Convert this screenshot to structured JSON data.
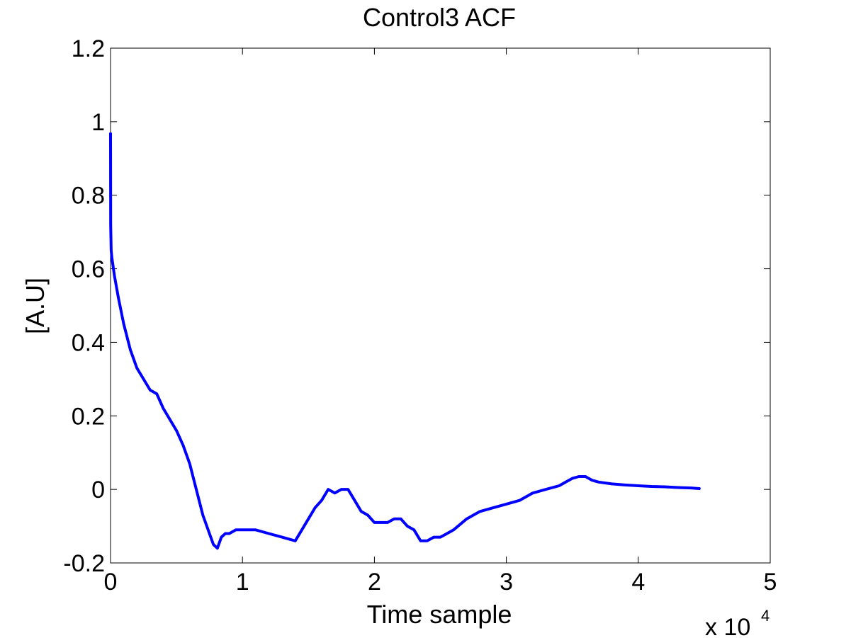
{
  "chart_data": {
    "type": "line",
    "title": "Control3 ACF",
    "xlabel": "Time sample",
    "ylabel": "[A.U]",
    "x_multiplier_label": "x 10",
    "x_multiplier_exponent": "4",
    "xlim": [
      0,
      5
    ],
    "ylim": [
      -0.2,
      1.2
    ],
    "x_ticks": [
      "0",
      "1",
      "2",
      "3",
      "4",
      "5"
    ],
    "y_ticks": [
      "-0.2",
      "0",
      "0.2",
      "0.4",
      "0.6",
      "0.8",
      "1",
      "1.2"
    ],
    "grid": false,
    "series": [
      {
        "color": "#0000ff",
        "x": [
          0.0,
          0.001,
          0.003,
          0.005,
          0.01,
          0.03,
          0.06,
          0.1,
          0.15,
          0.2,
          0.25,
          0.3,
          0.35,
          0.4,
          0.45,
          0.5,
          0.55,
          0.6,
          0.65,
          0.7,
          0.75,
          0.78,
          0.81,
          0.84,
          0.87,
          0.9,
          0.95,
          1.0,
          1.05,
          1.1,
          1.2,
          1.3,
          1.4,
          1.45,
          1.5,
          1.55,
          1.6,
          1.65,
          1.7,
          1.75,
          1.8,
          1.85,
          1.9,
          1.95,
          2.0,
          2.05,
          2.1,
          2.15,
          2.2,
          2.25,
          2.3,
          2.35,
          2.4,
          2.45,
          2.5,
          2.55,
          2.6,
          2.7,
          2.8,
          2.9,
          3.0,
          3.1,
          3.2,
          3.3,
          3.4,
          3.45,
          3.5,
          3.55,
          3.6,
          3.65,
          3.7,
          3.8,
          3.9,
          4.0,
          4.1,
          4.2,
          4.3,
          4.4,
          4.47
        ],
        "y": [
          0.97,
          0.72,
          0.68,
          0.65,
          0.63,
          0.58,
          0.52,
          0.45,
          0.38,
          0.33,
          0.3,
          0.27,
          0.26,
          0.22,
          0.19,
          0.16,
          0.12,
          0.07,
          0.0,
          -0.07,
          -0.12,
          -0.15,
          -0.16,
          -0.13,
          -0.12,
          -0.12,
          -0.11,
          -0.11,
          -0.11,
          -0.11,
          -0.12,
          -0.13,
          -0.14,
          -0.11,
          -0.08,
          -0.05,
          -0.03,
          0.0,
          -0.01,
          0.0,
          0.0,
          -0.03,
          -0.06,
          -0.07,
          -0.09,
          -0.09,
          -0.09,
          -0.08,
          -0.08,
          -0.1,
          -0.11,
          -0.14,
          -0.14,
          -0.13,
          -0.13,
          -0.12,
          -0.11,
          -0.08,
          -0.06,
          -0.05,
          -0.04,
          -0.03,
          -0.01,
          0.0,
          0.01,
          0.02,
          0.03,
          0.035,
          0.035,
          0.025,
          0.02,
          0.015,
          0.012,
          0.01,
          0.008,
          0.007,
          0.005,
          0.004,
          0.002
        ]
      }
    ]
  }
}
